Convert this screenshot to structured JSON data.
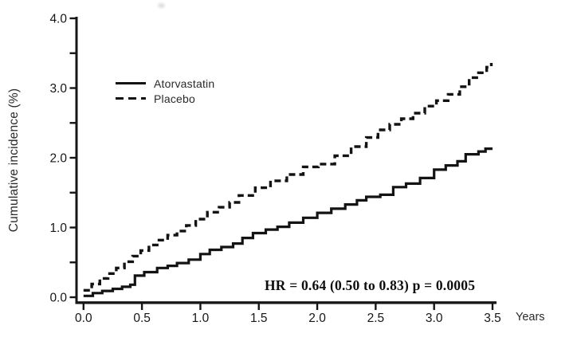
{
  "figure": {
    "background": "#ffffff",
    "ink_color": "#161616"
  },
  "chart_data": {
    "type": "line",
    "line_style": "step-after",
    "title": "",
    "xlabel": "Years",
    "ylabel": "Cumulative incidence (%)",
    "xlim": [
      0,
      3.5
    ],
    "ylim": [
      0,
      4.0
    ],
    "grid": false,
    "x_ticks": [
      0,
      0.5,
      1,
      1.5,
      2,
      2.5,
      3,
      3.5
    ],
    "x_tick_labels": [
      "0.0",
      "0.5",
      "1.0",
      "1.5",
      "2.0",
      "2.5",
      "3.0",
      "3.5"
    ],
    "y_ticks": [
      0,
      0.5,
      1,
      1.5,
      2,
      2.5,
      3,
      3.5,
      4
    ],
    "y_tick_labels": [
      "0.0",
      "",
      "1.0",
      "",
      "2.0",
      "",
      "3.0",
      "",
      "4.0"
    ],
    "legend": {
      "position": "upper-left-inside",
      "entries": [
        {
          "label": "Atorvastatin",
          "line": "solid"
        },
        {
          "label": "Placebo",
          "line": "dashed"
        }
      ]
    },
    "annotation": {
      "text": "HR = 0.64 (0.50 to 0.83) p = 0.0005",
      "hazard_ratio": 0.64,
      "ci_low": 0.5,
      "ci_high": 0.83,
      "p_value": 0.0005
    },
    "series": [
      {
        "name": "Atorvastatin",
        "line": "solid",
        "color": "#131313",
        "points": [
          [
            0.0,
            0.02
          ],
          [
            0.08,
            0.06
          ],
          [
            0.16,
            0.09
          ],
          [
            0.25,
            0.12
          ],
          [
            0.33,
            0.15
          ],
          [
            0.4,
            0.18
          ],
          [
            0.44,
            0.31
          ],
          [
            0.52,
            0.36
          ],
          [
            0.63,
            0.42
          ],
          [
            0.72,
            0.45
          ],
          [
            0.8,
            0.49
          ],
          [
            0.9,
            0.54
          ],
          [
            1.0,
            0.62
          ],
          [
            1.08,
            0.68
          ],
          [
            1.18,
            0.72
          ],
          [
            1.28,
            0.77
          ],
          [
            1.36,
            0.85
          ],
          [
            1.45,
            0.92
          ],
          [
            1.56,
            0.97
          ],
          [
            1.66,
            1.01
          ],
          [
            1.76,
            1.07
          ],
          [
            1.88,
            1.14
          ],
          [
            2.0,
            1.21
          ],
          [
            2.12,
            1.27
          ],
          [
            2.24,
            1.33
          ],
          [
            2.34,
            1.39
          ],
          [
            2.42,
            1.44
          ],
          [
            2.54,
            1.47
          ],
          [
            2.65,
            1.58
          ],
          [
            2.76,
            1.63
          ],
          [
            2.88,
            1.71
          ],
          [
            3.0,
            1.83
          ],
          [
            3.1,
            1.89
          ],
          [
            3.2,
            1.95
          ],
          [
            3.27,
            2.05
          ],
          [
            3.38,
            2.09
          ],
          [
            3.44,
            2.13
          ],
          [
            3.5,
            2.13
          ]
        ]
      },
      {
        "name": "Placebo",
        "line": "dashed",
        "color": "#131313",
        "points": [
          [
            0.0,
            0.1
          ],
          [
            0.07,
            0.19
          ],
          [
            0.14,
            0.27
          ],
          [
            0.21,
            0.34
          ],
          [
            0.28,
            0.42
          ],
          [
            0.35,
            0.51
          ],
          [
            0.42,
            0.59
          ],
          [
            0.49,
            0.67
          ],
          [
            0.56,
            0.75
          ],
          [
            0.63,
            0.82
          ],
          [
            0.72,
            0.89
          ],
          [
            0.8,
            0.95
          ],
          [
            0.88,
            1.03
          ],
          [
            0.96,
            1.12
          ],
          [
            1.06,
            1.22
          ],
          [
            1.16,
            1.29
          ],
          [
            1.25,
            1.36
          ],
          [
            1.33,
            1.46
          ],
          [
            1.47,
            1.57
          ],
          [
            1.6,
            1.67
          ],
          [
            1.74,
            1.76
          ],
          [
            1.88,
            1.87
          ],
          [
            2.01,
            1.91
          ],
          [
            2.15,
            2.03
          ],
          [
            2.29,
            2.16
          ],
          [
            2.42,
            2.29
          ],
          [
            2.52,
            2.4
          ],
          [
            2.62,
            2.48
          ],
          [
            2.72,
            2.56
          ],
          [
            2.82,
            2.64
          ],
          [
            2.92,
            2.74
          ],
          [
            3.02,
            2.82
          ],
          [
            3.12,
            2.91
          ],
          [
            3.22,
            3.02
          ],
          [
            3.3,
            3.15
          ],
          [
            3.38,
            3.22
          ],
          [
            3.45,
            3.3
          ],
          [
            3.49,
            3.36
          ]
        ]
      }
    ]
  }
}
